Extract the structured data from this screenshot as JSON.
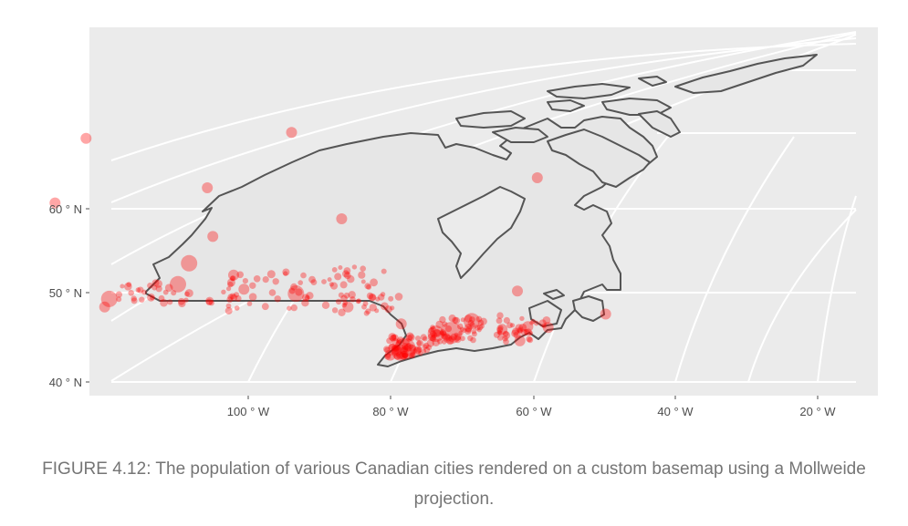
{
  "caption": "FIGURE 4.12: The population of various Canadian cities rendered on a custom basemap using a Mollweide projection.",
  "map": {
    "projection": "Mollweide",
    "panel_background": "#ebebeb",
    "grid_color": "#ffffff",
    "outline_color": "#555555",
    "land_fill": "#e6e6e6",
    "point_color": "#ff0000",
    "y_ticks": [
      "60 ° N",
      "50 ° N",
      "40 ° N"
    ],
    "x_ticks": [
      "100 ° W",
      "80 ° W",
      "60 ° W",
      "40 ° W",
      "20 ° W"
    ]
  },
  "chart_data": {
    "type": "scatter",
    "title": "",
    "xlabel": "",
    "ylabel": "",
    "description_of_series": "Canadian city locations as points; point size encodes population",
    "xlim": [
      "120 W",
      "15 W"
    ],
    "ylim": [
      "40 N",
      "72 N"
    ],
    "points": [
      {
        "lon": -79.4,
        "lat": 43.7,
        "size": 3
      },
      {
        "lon": -73.6,
        "lat": 45.5,
        "size": 3
      },
      {
        "lon": -123.1,
        "lat": 49.3,
        "size": 2
      },
      {
        "lon": -114.1,
        "lat": 51.0,
        "size": 2
      },
      {
        "lon": -113.5,
        "lat": 53.5,
        "size": 2
      },
      {
        "lon": -75.7,
        "lat": 45.4,
        "size": 2
      },
      {
        "lon": -97.1,
        "lat": 49.9,
        "size": 2
      },
      {
        "lon": -71.2,
        "lat": 46.8,
        "size": 2
      },
      {
        "lon": -79.9,
        "lat": 43.3,
        "size": 2
      },
      {
        "lon": -63.6,
        "lat": 44.6,
        "size": 1
      },
      {
        "lon": -123.4,
        "lat": 48.4,
        "size": 1
      },
      {
        "lon": -106.7,
        "lat": 52.1,
        "size": 1
      },
      {
        "lon": -104.6,
        "lat": 50.4,
        "size": 1
      },
      {
        "lon": -52.7,
        "lat": 47.6,
        "size": 1
      },
      {
        "lon": -80.5,
        "lat": 43.5,
        "size": 1
      },
      {
        "lon": -81.2,
        "lat": 43.0,
        "size": 1
      },
      {
        "lon": -63.1,
        "lat": 46.2,
        "size": 1
      },
      {
        "lon": -66.6,
        "lat": 45.9,
        "size": 1
      },
      {
        "lon": -114.4,
        "lat": 62.5,
        "size": 1
      },
      {
        "lon": -135.1,
        "lat": 60.7,
        "size": 1
      },
      {
        "lon": -68.5,
        "lat": 63.7,
        "size": 1
      },
      {
        "lon": -94.1,
        "lat": 58.8,
        "size": 1
      },
      {
        "lon": -111.4,
        "lat": 56.7,
        "size": 1
      },
      {
        "lon": -89.2,
        "lat": 48.4,
        "size": 1
      },
      {
        "lon": -81.0,
        "lat": 46.5,
        "size": 1
      },
      {
        "lon": -60.2,
        "lat": 46.1,
        "size": 1
      },
      {
        "lon": -66.1,
        "lat": 50.2,
        "size": 1
      },
      {
        "lon": -105.1,
        "lat": 69.1,
        "size": 1
      },
      {
        "lon": -133.7,
        "lat": 68.4,
        "size": 1
      }
    ]
  }
}
